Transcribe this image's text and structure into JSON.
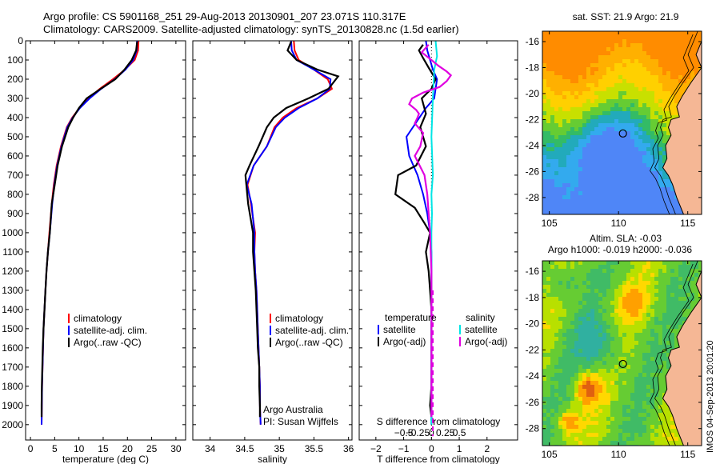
{
  "header": {
    "line1": "Argo profile: CS 5901168_251 29-Aug-2013 20130901_207 23.071S 110.317E",
    "line2": "Climatology: CARS2009. Satellite-adjusted climatology: synTS_20130828.nc (1.5d earlier)"
  },
  "stamp": "IMOS 04-Sep-2013 20:01:20",
  "colors": {
    "climatology": "#ff0000",
    "satellite": "#0000ff",
    "argo": "#000000",
    "salinity_satellite": "#00e5e5",
    "salinity_argo": "#e000e0",
    "land": "#f5b795"
  },
  "chart_data": [
    {
      "type": "line",
      "id": "temperature",
      "xlabel": "temperature (deg C)",
      "ylabel": "",
      "xlim": [
        -1,
        32
      ],
      "ylim": [
        2080,
        0
      ],
      "xticks": [
        0,
        5,
        10,
        15,
        20,
        25,
        30
      ],
      "xtick_labels": [
        "0",
        "5",
        "10",
        "15",
        "20",
        "25",
        "30"
      ],
      "yticks": [
        0,
        100,
        200,
        300,
        400,
        500,
        600,
        700,
        800,
        900,
        1000,
        1100,
        1200,
        1300,
        1400,
        1500,
        1600,
        1700,
        1800,
        1900,
        2000
      ],
      "ytick_labels": [
        "0",
        "100",
        "200",
        "300",
        "400",
        "500",
        "600",
        "700",
        "800",
        "900",
        "1000",
        "1100",
        "1200",
        "1300",
        "1400",
        "1500",
        "1600",
        "1700",
        "1800",
        "1900",
        "2000"
      ],
      "legend": [
        "climatology",
        "satellite-adj. clim.",
        "Argo(..raw -QC)"
      ],
      "series": [
        {
          "name": "climatology",
          "x": [
            22.3,
            22.2,
            21.5,
            19.5,
            17.0,
            14.3,
            12.0,
            10.1,
            8.6,
            7.5,
            6.3,
            5.4,
            4.8,
            4.4,
            3.9,
            3.6,
            3.3,
            3.1,
            2.9,
            2.7,
            2.6,
            2.5,
            2.4,
            2.35,
            2.3
          ],
          "y": [
            0,
            50,
            100,
            150,
            200,
            250,
            300,
            350,
            400,
            450,
            550,
            650,
            750,
            850,
            1000,
            1100,
            1200,
            1300,
            1400,
            1500,
            1600,
            1700,
            1800,
            1900,
            2000
          ]
        },
        {
          "name": "satellite-adj. clim.",
          "x": [
            22.0,
            21.9,
            21.2,
            19.6,
            17.4,
            14.6,
            12.2,
            10.2,
            8.7,
            7.6,
            6.4,
            5.5,
            4.9,
            4.5,
            4.0,
            3.6,
            3.3,
            3.1,
            2.9,
            2.7,
            2.6,
            2.5,
            2.4,
            2.35,
            2.3
          ],
          "y": [
            0,
            50,
            100,
            150,
            200,
            250,
            300,
            350,
            400,
            450,
            550,
            650,
            750,
            850,
            1000,
            1100,
            1200,
            1300,
            1400,
            1500,
            1600,
            1700,
            1800,
            1900,
            2000
          ]
        },
        {
          "name": "Argo(..raw -QC)",
          "x": [
            22.0,
            21.8,
            20.9,
            19.4,
            17.5,
            14.5,
            11.6,
            10.0,
            8.8,
            7.8,
            6.5,
            5.6,
            5.0,
            4.4,
            4.0,
            3.6,
            3.3,
            3.1,
            2.9,
            2.7,
            2.55,
            2.45,
            2.35,
            2.3,
            2.3
          ],
          "y": [
            5,
            50,
            100,
            150,
            200,
            250,
            300,
            350,
            400,
            450,
            550,
            650,
            750,
            850,
            1000,
            1100,
            1200,
            1300,
            1400,
            1500,
            1600,
            1700,
            1800,
            1900,
            1960
          ]
        }
      ]
    },
    {
      "type": "line",
      "id": "salinity",
      "xlabel": "salinity",
      "ylabel": "",
      "xlim": [
        33.75,
        36.05
      ],
      "ylim": [
        2080,
        0
      ],
      "xticks": [
        34,
        34.5,
        35,
        35.5,
        36
      ],
      "xtick_labels": [
        "34",
        "34.5",
        "35",
        "35.5",
        "36"
      ],
      "legend": [
        "climatology",
        "satellite-adj. clim.",
        "Argo(..raw -QC)"
      ],
      "annotation": [
        "Argo Australia",
        "PI: Susan Wijffels"
      ],
      "series": [
        {
          "name": "climatology",
          "x": [
            35.21,
            35.22,
            35.28,
            35.5,
            35.7,
            35.76,
            35.55,
            35.25,
            35.05,
            34.93,
            34.82,
            34.63,
            34.54,
            34.59,
            34.65,
            34.64,
            34.65,
            34.67,
            34.68,
            34.69,
            34.7,
            34.71,
            34.72,
            34.72,
            34.73
          ],
          "y": [
            0,
            50,
            100,
            150,
            200,
            250,
            300,
            350,
            400,
            450,
            550,
            650,
            750,
            850,
            1000,
            1100,
            1200,
            1300,
            1400,
            1500,
            1600,
            1700,
            1800,
            1900,
            2000
          ]
        },
        {
          "name": "satellite-adj. clim.",
          "x": [
            35.17,
            35.18,
            35.25,
            35.5,
            35.74,
            35.73,
            35.55,
            35.28,
            35.08,
            34.95,
            34.82,
            34.63,
            34.53,
            34.6,
            34.64,
            34.64,
            34.65,
            34.67,
            34.68,
            34.69,
            34.7,
            34.71,
            34.72,
            34.72,
            34.73
          ],
          "y": [
            0,
            50,
            100,
            150,
            200,
            250,
            300,
            350,
            400,
            450,
            550,
            650,
            750,
            850,
            1000,
            1100,
            1200,
            1300,
            1400,
            1500,
            1600,
            1700,
            1800,
            1900,
            2000
          ]
        },
        {
          "name": "Argo(..raw -QC)",
          "x": [
            35.17,
            35.12,
            35.25,
            35.55,
            35.85,
            35.71,
            35.42,
            35.1,
            34.92,
            34.82,
            34.7,
            34.57,
            34.51,
            34.55,
            34.62,
            34.62,
            34.64,
            34.66,
            34.67,
            34.68,
            34.69,
            34.71,
            34.71,
            34.72,
            34.72
          ],
          "y": [
            5,
            50,
            100,
            150,
            185,
            250,
            300,
            350,
            400,
            450,
            550,
            650,
            700,
            850,
            1000,
            1100,
            1200,
            1300,
            1400,
            1500,
            1600,
            1700,
            1800,
            1900,
            1960
          ]
        }
      ]
    },
    {
      "type": "line",
      "id": "difference",
      "xlabel": "T difference from climatology",
      "xlabel_top": "S difference from climatology",
      "xlim": [
        -2.6,
        3.1
      ],
      "ylim": [
        2080,
        0
      ],
      "xticks": [
        -2,
        -1,
        0,
        1,
        2
      ],
      "xtick_labels": [
        "−2",
        "−1",
        "0",
        "1",
        "2"
      ],
      "sticks": [
        -1.0,
        -0.5,
        0.0,
        0.5,
        1.0
      ],
      "stick_labels": [
        "−0.5",
        "−0.25",
        "0",
        "0.25",
        "0.5"
      ],
      "legend_titles": [
        "temperature",
        "salinity"
      ],
      "legend": [
        "satellite",
        "Argo(-adj)",
        "satellite",
        "Argo(-adj)"
      ],
      "series": [
        {
          "name": "temperature satellite",
          "x": [
            -0.2,
            -0.15,
            -0.05,
            0.05,
            0.2,
            0.15,
            0.1,
            -0.2,
            -0.9,
            -0.8,
            -0.5,
            -0.3,
            -0.15,
            -0.05,
            0.0,
            0.0,
            0.0,
            0.0,
            0.0,
            0.0,
            0.0,
            0.0,
            0.0
          ],
          "y": [
            0,
            50,
            100,
            150,
            200,
            250,
            300,
            350,
            500,
            600,
            700,
            800,
            900,
            1000,
            1100,
            1200,
            1300,
            1400,
            1500,
            1600,
            1700,
            1800,
            2000
          ]
        },
        {
          "name": "temperature Argo(-adj)",
          "x": [
            -0.3,
            -0.45,
            -0.3,
            -0.1,
            0.15,
            0.0,
            -0.35,
            -0.2,
            -0.4,
            -0.2,
            -0.55,
            -1.2,
            -1.3,
            -0.6,
            -0.25,
            -0.05,
            -0.2,
            -0.1,
            -0.05,
            0.0,
            0.0,
            0.0,
            0.0,
            0.0,
            -0.05,
            0.0
          ],
          "y": [
            20,
            50,
            90,
            140,
            200,
            250,
            300,
            380,
            450,
            550,
            650,
            700,
            800,
            870,
            950,
            1000,
            1100,
            1200,
            1300,
            1400,
            1500,
            1600,
            1700,
            1800,
            1900,
            1960
          ]
        },
        {
          "name": "salinity satellite",
          "x": [
            0.15,
            0.2,
            0.1,
            0.05,
            0.0,
            0.05,
            0.0,
            0.02,
            0.0,
            0.0,
            0.0,
            0.0,
            0.0
          ],
          "y": [
            0,
            80,
            150,
            300,
            500,
            700,
            800,
            900,
            1000,
            1200,
            1500,
            1800,
            2000
          ]
        },
        {
          "name": "salinity Argo(-adj)",
          "x": [
            -0.1,
            -0.35,
            0.0,
            0.25,
            0.55,
            0.7,
            0.55,
            0.3,
            -0.3,
            -0.7,
            -0.8,
            -0.55,
            -0.45,
            -0.5,
            -0.6,
            -0.3,
            -0.4,
            -0.6,
            -0.25,
            -0.15,
            -0.1,
            -0.05,
            0.0,
            0.0,
            0.0,
            0.0,
            0.0
          ],
          "y": [
            20,
            60,
            100,
            130,
            160,
            180,
            210,
            240,
            270,
            300,
            330,
            360,
            380,
            400,
            430,
            480,
            550,
            600,
            700,
            800,
            900,
            1000,
            1200,
            1400,
            1600,
            1800,
            1960
          ]
        }
      ]
    },
    {
      "type": "heatmap",
      "id": "sst_map",
      "title": "sat. SST: 21.9 Argo: 21.9",
      "xlim": [
        104.5,
        116
      ],
      "ylim": [
        -29.3,
        -15.2
      ],
      "xticks": [
        105,
        110,
        115
      ],
      "xtick_labels": [
        "105",
        "110",
        "115"
      ],
      "yticks": [
        -28,
        -26,
        -24,
        -22,
        -20,
        -18,
        -16
      ],
      "ytick_labels": [
        "-28",
        "-26",
        "-24",
        "-22",
        "-20",
        "-18",
        "-16"
      ],
      "marker": {
        "lon": 110.317,
        "lat": -23.071
      }
    },
    {
      "type": "heatmap",
      "id": "sla_map",
      "title": "Altim. SLA: -0.03",
      "subtitle": "Argo h1000: -0.019 h2000: -0.036",
      "xlim": [
        104.5,
        116
      ],
      "ylim": [
        -29.3,
        -15.2
      ],
      "xticks": [
        105,
        110,
        115
      ],
      "xtick_labels": [
        "105",
        "110",
        "115"
      ],
      "yticks": [
        -28,
        -26,
        -24,
        -22,
        -20,
        -18,
        -16
      ],
      "ytick_labels": [
        "-28",
        "-26",
        "-24",
        "-22",
        "-20",
        "-18",
        "-16"
      ],
      "marker": {
        "lon": 110.317,
        "lat": -23.071
      }
    }
  ]
}
